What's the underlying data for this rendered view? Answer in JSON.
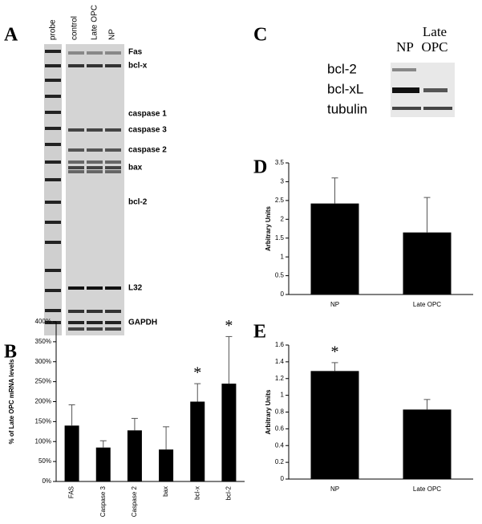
{
  "panels": {
    "a": "A",
    "b": "B",
    "c": "C",
    "d": "D",
    "e": "E"
  },
  "gel_a": {
    "lanes": [
      "probe",
      "control",
      "Late OPC",
      "NP"
    ],
    "bands": [
      "Fas",
      "bcl-x",
      "caspase 1",
      "caspase 3",
      "caspase 2",
      "bax",
      "bcl-2",
      "L32",
      "GAPDH"
    ]
  },
  "blot_c": {
    "columns": [
      "NP",
      "Late OPC"
    ],
    "rows": [
      "bcl-2",
      "bcl-xL",
      "tubulin"
    ]
  },
  "chart_data": [
    {
      "type": "bar",
      "y_label": "% of Late OPC mRNA levels",
      "categories": [
        "FAS",
        "Caspase 3",
        "Caspase 2",
        "bax",
        "bcl-x",
        "bcl-2"
      ],
      "values": [
        140,
        85,
        128,
        80,
        200,
        245
      ],
      "errors": [
        52,
        17,
        30,
        57,
        45,
        118
      ],
      "significant": [
        false,
        false,
        false,
        false,
        true,
        true
      ],
      "significance_mark": "*",
      "color": "#000000",
      "ylim": [
        0,
        400
      ],
      "yticks": [
        {
          "value": 0,
          "label": "0%"
        },
        {
          "value": 50,
          "label": "50%"
        },
        {
          "value": 100,
          "label": "100%"
        },
        {
          "value": 150,
          "label": "150%"
        },
        {
          "value": 200,
          "label": "200%"
        },
        {
          "value": 250,
          "label": "250%"
        },
        {
          "value": 300,
          "label": "300%"
        },
        {
          "value": 350,
          "label": "350%"
        },
        {
          "value": 400,
          "label": "400%"
        }
      ]
    },
    {
      "type": "bar",
      "y_label": "Arbitrary Units",
      "categories": [
        "NP",
        "Late OPC"
      ],
      "values": [
        2.42,
        1.65
      ],
      "errors": [
        0.68,
        0.93
      ],
      "significant": [
        false,
        false
      ],
      "significance_mark": "*",
      "color": "#000000",
      "ylim": [
        0,
        3.5
      ],
      "yticks": [
        0,
        0.5,
        1,
        1.5,
        2,
        2.5,
        3,
        3.5
      ]
    },
    {
      "type": "bar",
      "y_label": "Arbitrary Units",
      "categories": [
        "NP",
        "Late OPC"
      ],
      "values": [
        1.29,
        0.83
      ],
      "errors": [
        0.1,
        0.12
      ],
      "significant": [
        true,
        false
      ],
      "significance_mark": "*",
      "color": "#000000",
      "ylim": [
        0,
        1.6
      ],
      "yticks": [
        0,
        0.2,
        0.4,
        0.6,
        0.8,
        1,
        1.2,
        1.4,
        1.6
      ]
    }
  ]
}
